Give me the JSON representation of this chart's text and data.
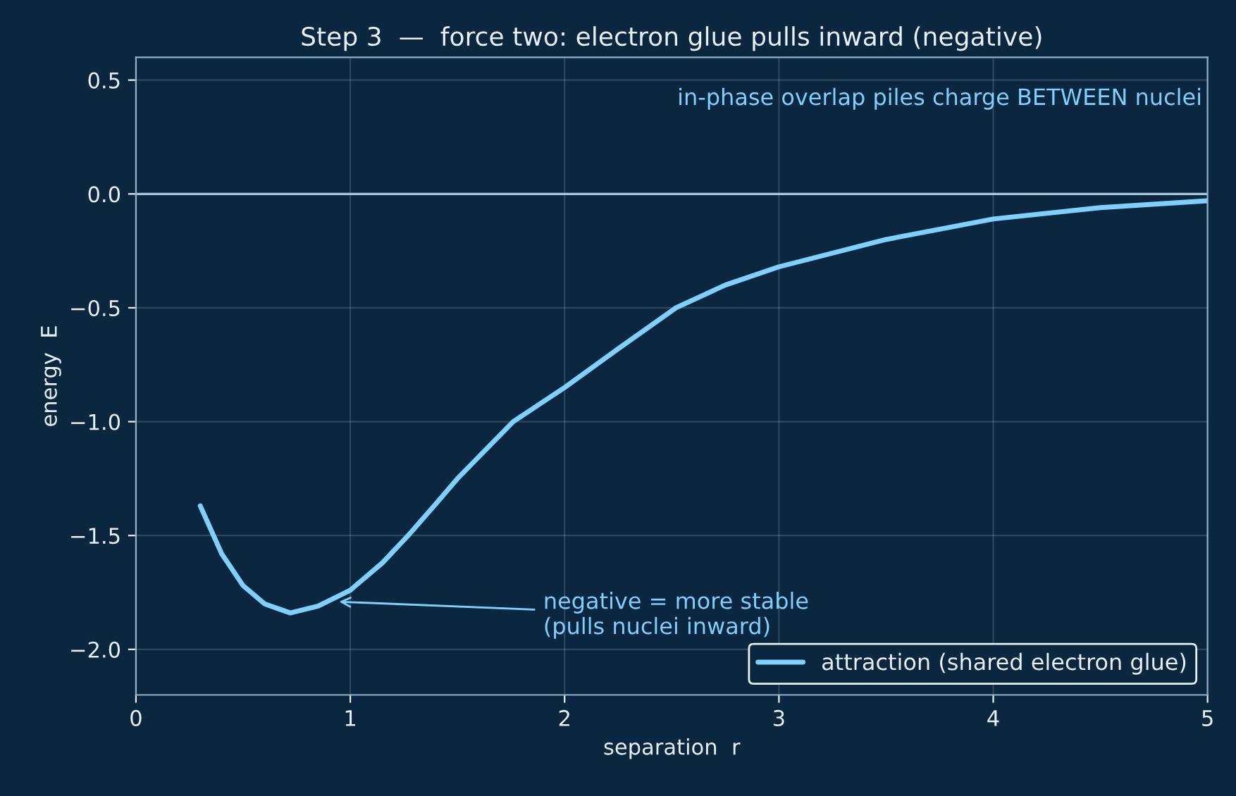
{
  "chart_data": {
    "type": "line",
    "title": "Step 3  —  force two: electron glue pulls inward (negative)",
    "xlabel": "separation  r",
    "ylabel": "energy  E",
    "series": [
      {
        "name": "attraction (shared electron glue)",
        "color": "#7fd0ff",
        "x": [
          0.3,
          0.4,
          0.5,
          0.6,
          0.72,
          0.85,
          1.0,
          1.15,
          1.27,
          1.4,
          1.5,
          1.76,
          2.0,
          2.25,
          2.52,
          2.75,
          3.0,
          3.5,
          4.0,
          4.5,
          5.0
        ],
        "values": [
          -1.37,
          -1.58,
          -1.72,
          -1.8,
          -1.84,
          -1.81,
          -1.74,
          -1.62,
          -1.5,
          -1.36,
          -1.25,
          -1.0,
          -0.85,
          -0.68,
          -0.5,
          -0.4,
          -0.32,
          -0.2,
          -0.11,
          -0.06,
          -0.03
        ]
      }
    ],
    "xlim": [
      0,
      5
    ],
    "ylim": [
      -2.2,
      0.6
    ],
    "xticks": [
      0,
      1,
      2,
      3,
      4,
      5
    ],
    "yticks": [
      {
        "value": -2.0,
        "label": "−2.0"
      },
      {
        "value": -1.5,
        "label": "−1.5"
      },
      {
        "value": -1.0,
        "label": "−1.0"
      },
      {
        "value": -0.5,
        "label": "−0.5"
      },
      {
        "value": 0.0,
        "label": "0.0"
      },
      {
        "value": 0.5,
        "label": "0.5"
      }
    ],
    "ref_lines": [
      {
        "axis": "y",
        "value": 0,
        "label": null,
        "color": "#a9c8dc"
      }
    ],
    "annotations": [
      "in-phase overlap piles charge BETWEEN nuclei",
      {
        "text": "negative = more stable\n(pulls nuclei inward)",
        "x": 0.93,
        "y": -1.79
      }
    ],
    "grid": true,
    "legend": "bottom right",
    "marker": "none",
    "line_style": "solid"
  }
}
